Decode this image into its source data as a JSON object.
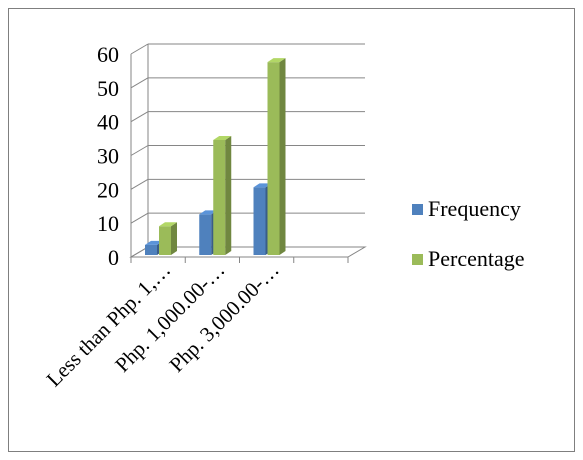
{
  "chart_data": {
    "type": "bar",
    "categories": [
      "Less than Php. 1,…",
      "Php. 1,000.00-…",
      "Php. 3,000.00-…"
    ],
    "series": [
      {
        "name": "Frequency",
        "values": [
          3,
          12,
          20
        ],
        "color": "#4f81bd"
      },
      {
        "name": "Percentage",
        "values": [
          8.5,
          34,
          57
        ],
        "color": "#9bbb59"
      }
    ],
    "yticks": [
      "0",
      "10",
      "20",
      "30",
      "40",
      "50",
      "60"
    ],
    "ylim": [
      0,
      60
    ],
    "grid": true,
    "legend_position": "right",
    "style": "3d-clustered-column"
  }
}
